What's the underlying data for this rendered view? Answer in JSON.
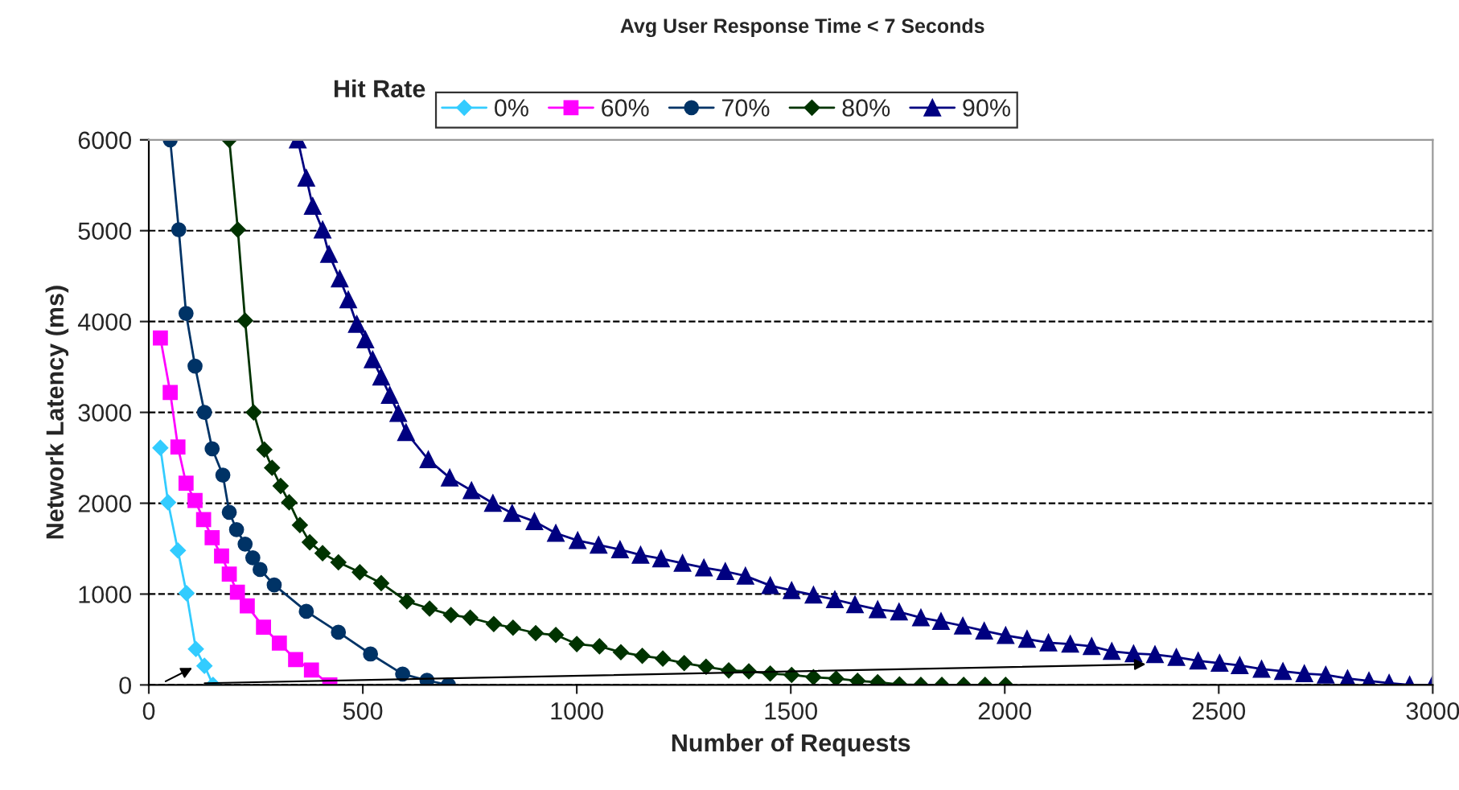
{
  "chart_data": {
    "type": "line",
    "title": "Avg User Response Time < 7 Seconds",
    "xlabel": "Number of Requests",
    "ylabel": "Network Latency (ms)",
    "legend_title": "Hit Rate",
    "xlim": [
      0,
      3000
    ],
    "xticks": [
      0,
      500,
      1000,
      1500,
      2000,
      2500,
      3000
    ],
    "ylim": [
      0,
      6000
    ],
    "yticks": [
      0,
      1000,
      2000,
      3000,
      4000,
      5000,
      6000
    ],
    "grid": "y",
    "legend": "top",
    "series": [
      {
        "name": "0%",
        "color": "#33ccff",
        "marker": "diamond",
        "x": [
          27,
          45,
          68,
          88,
          110,
          130,
          150
        ],
        "values": [
          2610,
          2010,
          1480,
          1010,
          395,
          210,
          0
        ]
      },
      {
        "name": "60%",
        "color": "#ff00ff",
        "marker": "square",
        "x": [
          27,
          50,
          68,
          87,
          108,
          128,
          148,
          170,
          188,
          207,
          230,
          268,
          305,
          343,
          380,
          423
        ],
        "values": [
          3820,
          3220,
          2620,
          2220,
          2030,
          1820,
          1620,
          1420,
          1220,
          1020,
          870,
          635,
          460,
          280,
          165,
          0
        ]
      },
      {
        "name": "70%",
        "color": "#003366",
        "marker": "circle",
        "x": [
          50,
          70,
          87,
          108,
          130,
          148,
          173,
          188,
          205,
          225,
          243,
          260,
          293,
          368,
          443,
          518,
          593,
          650,
          700
        ],
        "values": [
          6000,
          5010,
          4090,
          3510,
          3000,
          2600,
          2310,
          1900,
          1710,
          1550,
          1400,
          1270,
          1100,
          810,
          580,
          340,
          120,
          50,
          0
        ]
      },
      {
        "name": "80%",
        "color": "#003300",
        "marker": "diamond",
        "x": [
          188,
          208,
          225,
          245,
          270,
          288,
          308,
          328,
          353,
          376,
          406,
          443,
          493,
          543,
          603,
          656,
          706,
          751,
          806,
          851,
          904,
          951,
          1000,
          1053,
          1103,
          1153,
          1201,
          1251,
          1302,
          1355,
          1402,
          1452,
          1502,
          1553,
          1606,
          1656,
          1703,
          1754,
          1804,
          1853,
          1904,
          1954,
          2002
        ],
        "values": [
          6000,
          5010,
          4010,
          3000,
          2590,
          2390,
          2190,
          2010,
          1760,
          1570,
          1450,
          1350,
          1240,
          1120,
          920,
          840,
          770,
          740,
          670,
          630,
          570,
          550,
          450,
          425,
          360,
          320,
          290,
          240,
          200,
          160,
          150,
          125,
          110,
          85,
          70,
          45,
          30,
          5,
          0,
          0,
          0,
          0,
          0
        ]
      },
      {
        "name": "90%",
        "color": "#000080",
        "marker": "triangle",
        "x": [
          348,
          368,
          383,
          406,
          421,
          446,
          466,
          486,
          506,
          523,
          543,
          563,
          583,
          601,
          653,
          703,
          754,
          804,
          849,
          901,
          951,
          1002,
          1051,
          1101,
          1149,
          1197,
          1247,
          1297,
          1347,
          1394,
          1452,
          1502,
          1553,
          1603,
          1650,
          1703,
          1753,
          1804,
          1851,
          1902,
          1952,
          2002,
          2052,
          2102,
          2153,
          2203,
          2250,
          2301,
          2351,
          2401,
          2452,
          2502,
          2549,
          2600,
          2650,
          2700,
          2750,
          2801,
          2851,
          2898,
          2946,
          2999
        ],
        "values": [
          6000,
          5580,
          5270,
          5010,
          4740,
          4470,
          4240,
          3970,
          3800,
          3580,
          3390,
          3190,
          2990,
          2780,
          2480,
          2280,
          2140,
          2000,
          1890,
          1800,
          1670,
          1590,
          1540,
          1490,
          1430,
          1390,
          1340,
          1290,
          1250,
          1200,
          1094,
          1040,
          990,
          940,
          885,
          830,
          805,
          740,
          700,
          650,
          595,
          545,
          505,
          465,
          450,
          425,
          370,
          345,
          335,
          305,
          265,
          240,
          215,
          175,
          150,
          125,
          110,
          70,
          45,
          20,
          0,
          0
        ]
      }
    ]
  }
}
